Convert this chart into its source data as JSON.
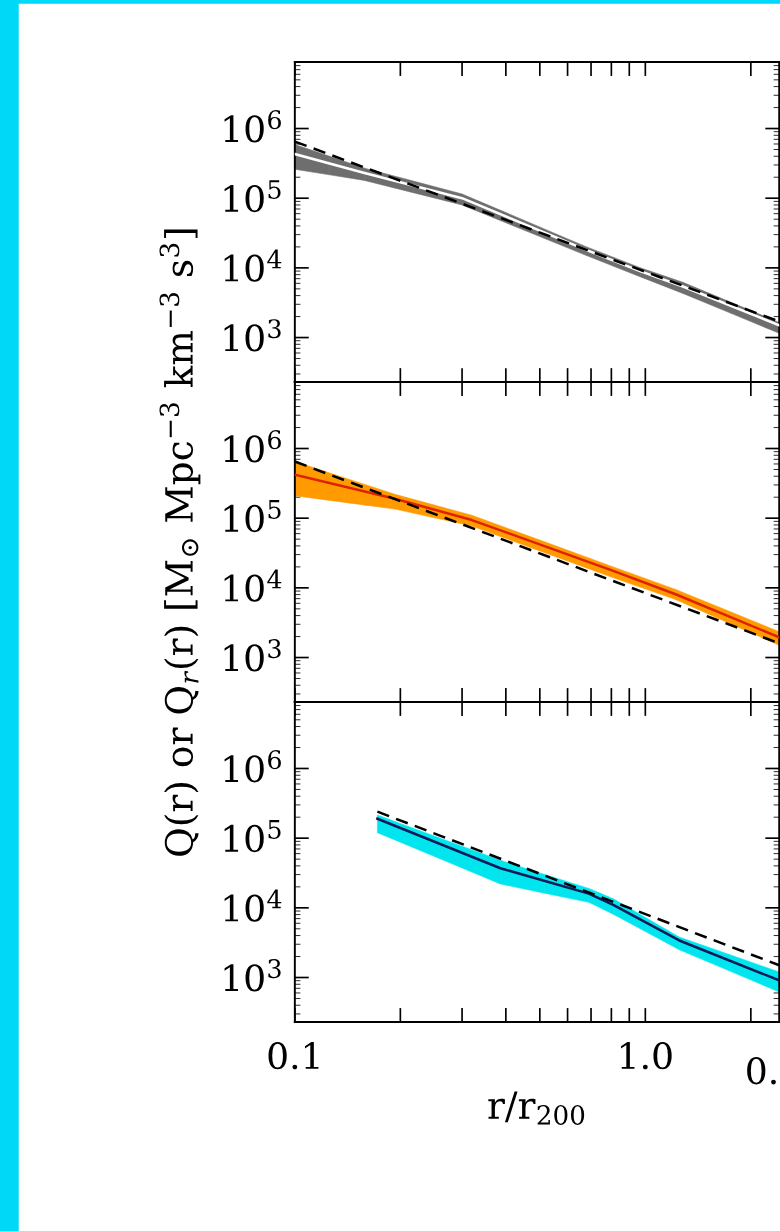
{
  "chart_data": [
    {
      "type": "line",
      "log": "xy",
      "xlim": [
        0.1,
        2.41
      ],
      "ylim": [
        230,
        9000000
      ],
      "tick_labels": "y",
      "xticks": [
        {
          "value": 0.1,
          "label": null
        },
        {
          "value": 0.2,
          "label": null
        },
        {
          "value": 0.3,
          "label": null
        },
        {
          "value": 0.4,
          "label": null
        },
        {
          "value": 0.5,
          "label": null
        },
        {
          "value": 0.6,
          "label": null
        },
        {
          "value": 0.7,
          "label": null
        },
        {
          "value": 0.8,
          "label": null
        },
        {
          "value": 0.9,
          "label": null
        },
        {
          "value": 1.0,
          "label": null
        },
        {
          "value": 2.0,
          "label": null
        }
      ],
      "yticks": [
        {
          "value": 1000,
          "label": "10$^{3}$"
        },
        {
          "value": 10000,
          "label": "10$^{4}$"
        },
        {
          "value": 100000,
          "label": "10$^{5}$"
        },
        {
          "value": 1000000,
          "label": "10$^{6}$"
        }
      ],
      "series": [
        {
          "color": "#ffffff",
          "colors": [
            "#6e6e6e",
            "#6e6e6e",
            "#6e6e6e",
            "#6e6e6e",
            "#6e6e6e",
            "#6e6e6e",
            "#6e6e6e"
          ],
          "line_style": "solid",
          "x": [
            0.1,
            0.158,
            0.3,
            0.68,
            0.97,
            1.28,
            2.41
          ],
          "values": [
            430000,
            230000,
            100000,
            18000,
            8900,
            5400,
            1500
          ],
          "lower": [
            260000,
            180000,
            80000,
            15000,
            7400,
            4300,
            1150
          ],
          "upper": [
            590000,
            270000,
            115000,
            20000,
            10000,
            6200,
            1650
          ]
        },
        {
          "color": "#000000",
          "line_style": "dashed",
          "x": [
            0.1,
            2.41
          ],
          "values": [
            650000,
            1700
          ]
        }
      ]
    },
    {
      "type": "line",
      "log": "xy",
      "xlim": [
        0.1,
        2.41
      ],
      "ylim": [
        230,
        9000000
      ],
      "tick_labels": "y",
      "ylabel": "Q(r) or Q$_{r}$(r) [M$_{⊙}$ Mpc$^{−3}$ km$^{−3}$ s$^{3}$]",
      "xticks": [
        {
          "value": 0.1,
          "label": null
        },
        {
          "value": 0.2,
          "label": null
        },
        {
          "value": 0.3,
          "label": null
        },
        {
          "value": 0.4,
          "label": null
        },
        {
          "value": 0.5,
          "label": null
        },
        {
          "value": 0.6,
          "label": null
        },
        {
          "value": 0.7,
          "label": null
        },
        {
          "value": 0.8,
          "label": null
        },
        {
          "value": 0.9,
          "label": null
        },
        {
          "value": 1.0,
          "label": null
        },
        {
          "value": 2.0,
          "label": null
        }
      ],
      "yticks": [
        {
          "value": 1000,
          "label": "10$^{3}$"
        },
        {
          "value": 10000,
          "label": "10$^{4}$"
        },
        {
          "value": 100000,
          "label": "10$^{5}$"
        },
        {
          "value": 1000000,
          "label": "10$^{6}$"
        }
      ],
      "series": [
        {
          "color": "#dd2200",
          "colors": [
            "#ff9a00",
            "#ff9a00",
            "#ff9a00",
            "#ff9a00",
            "#ff9a00",
            "#ff9a00"
          ],
          "line_style": "solid",
          "x": [
            0.1,
            0.193,
            0.32,
            0.81,
            1.22,
            2.41
          ],
          "values": [
            420000,
            190000,
            94000,
            17500,
            8100,
            1950
          ],
          "lower": [
            210000,
            135000,
            77000,
            14000,
            6800,
            1500
          ],
          "upper": [
            650000,
            220000,
            110000,
            20000,
            9500,
            2350
          ]
        },
        {
          "color": "#000000",
          "line_style": "dashed",
          "x": [
            0.1,
            2.41
          ],
          "values": [
            650000,
            1600
          ]
        }
      ]
    },
    {
      "type": "line",
      "log": "xy",
      "xlim": [
        0.1,
        2.41
      ],
      "ylim": [
        230,
        9000000
      ],
      "xlabel": "r/r$_{200}$",
      "annotations": [
        "0."
      ],
      "xticks": [
        {
          "value": 0.1,
          "label": "0.1"
        },
        {
          "value": 0.2,
          "label": null
        },
        {
          "value": 0.3,
          "label": null
        },
        {
          "value": 0.4,
          "label": null
        },
        {
          "value": 0.5,
          "label": null
        },
        {
          "value": 0.6,
          "label": null
        },
        {
          "value": 0.7,
          "label": null
        },
        {
          "value": 0.8,
          "label": null
        },
        {
          "value": 0.9,
          "label": null
        },
        {
          "value": 1.0,
          "label": "1.0"
        },
        {
          "value": 2.0,
          "label": null
        }
      ],
      "yticks": [
        {
          "value": 1000,
          "label": "10$^{3}$"
        },
        {
          "value": 10000,
          "label": "10$^{4}$"
        },
        {
          "value": 100000,
          "label": "10$^{5}$"
        },
        {
          "value": 1000000,
          "label": "10$^{6}$"
        }
      ],
      "series": [
        {
          "color": "#0a1a5a",
          "colors": [
            "#00e5ee",
            "#00e5ee",
            "#00e5ee",
            "#00e5ee",
            "#00e5ee",
            "#00e5ee"
          ],
          "line_style": "solid",
          "x": [
            0.172,
            0.386,
            0.69,
            0.81,
            1.25,
            2.41
          ],
          "values": [
            190000,
            37000,
            16000,
            11000,
            3400,
            910
          ],
          "lower": [
            120000,
            22000,
            12000,
            8100,
            2500,
            620
          ],
          "upper": [
            215000,
            48000,
            19000,
            13500,
            3800,
            1200
          ]
        },
        {
          "color": "#000000",
          "line_style": "dashed",
          "x": [
            0.172,
            2.41
          ],
          "values": [
            240000,
            1500
          ]
        }
      ]
    }
  ]
}
